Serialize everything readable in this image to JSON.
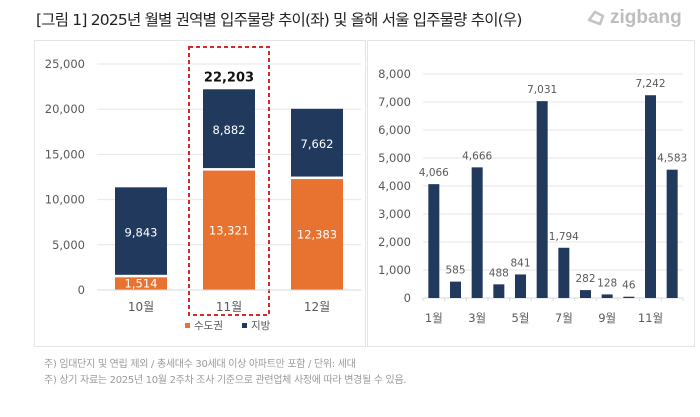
{
  "header": {
    "title": "[그림 1] 2025년 월별 권역별 입주물량 추이(좌) 및 올해 서울 입주물량 추이(우)",
    "brand": "zigbang",
    "brand_icon": "zigbang-logo-icon"
  },
  "colors": {
    "capital_area": "#E8722F",
    "regional": "#22395E",
    "highlight_border": "#D42A2A",
    "gridline": "#E6E6E6",
    "axis_text": "#595959"
  },
  "chart_data": [
    {
      "type": "bar",
      "stacked": true,
      "title": "2025년 월별 권역별 입주물량 추이",
      "categories": [
        "10월",
        "11월",
        "12월"
      ],
      "series": [
        {
          "name": "수도권",
          "values": [
            1514,
            13321,
            12383
          ]
        },
        {
          "name": "지방",
          "values": [
            9843,
            8882,
            7662
          ]
        }
      ],
      "totals_labeled": [
        {
          "category": "11월",
          "value": "22,203"
        }
      ],
      "highlight": "11월",
      "ylim": [
        0,
        25000
      ],
      "yticks": [
        0,
        5000,
        10000,
        15000,
        20000,
        25000
      ],
      "ytick_labels": [
        "0",
        "5,000",
        "10,000",
        "15,000",
        "20,000",
        "25,000"
      ],
      "grid": true,
      "legend": {
        "position": "bottom",
        "entries": [
          "수도권",
          "지방"
        ]
      },
      "xlabel": "",
      "ylabel": ""
    },
    {
      "type": "bar",
      "title": "올해 서울 입주물량 추이",
      "categories": [
        "1월",
        "2월",
        "3월",
        "4월",
        "5월",
        "6월",
        "7월",
        "8월",
        "9월",
        "10월",
        "11월",
        "12월"
      ],
      "xtick_labels_shown": [
        "1월",
        "3월",
        "5월",
        "7월",
        "9월",
        "11월"
      ],
      "values": [
        4066,
        585,
        4666,
        488,
        841,
        7031,
        1794,
        282,
        128,
        46,
        7242,
        4583
      ],
      "value_labels": [
        "4,066",
        "585",
        "4,666",
        "488",
        "841",
        "7,031",
        "1,794",
        "282",
        "128",
        "46",
        "7,242",
        "4,583"
      ],
      "ylim": [
        0,
        8000
      ],
      "yticks": [
        0,
        1000,
        2000,
        3000,
        4000,
        5000,
        6000,
        7000,
        8000
      ],
      "ytick_labels": [
        "0",
        "1,000",
        "2,000",
        "3,000",
        "4,000",
        "5,000",
        "6,000",
        "7,000",
        "8,000"
      ],
      "grid": true,
      "xlabel": "",
      "ylabel": ""
    }
  ],
  "notes": [
    "주) 임대단지 및 연립 제외 / 총세대수 30세대 이상 아파트만 포함 / 단위: 세대",
    "주) 상기 자료는 2025년 10월 2주차 조사 기준으로 관련업체 사정에 따라 변경될 수 있음."
  ]
}
